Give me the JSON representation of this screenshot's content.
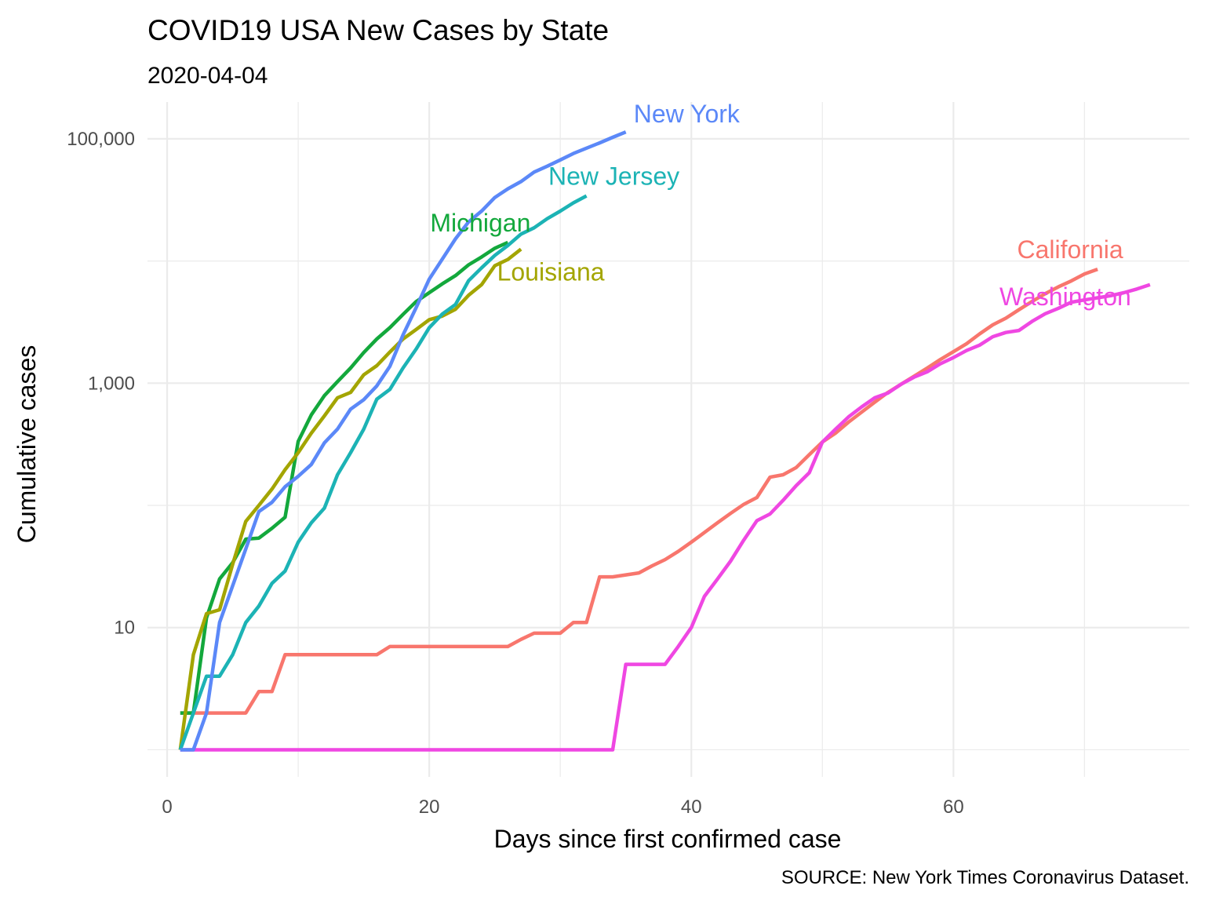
{
  "chart_data": {
    "type": "line",
    "title": "COVID19 USA New Cases by State",
    "subtitle": "2020-04-04",
    "xlabel": "Days since first confirmed case",
    "ylabel": "Cumulative cases",
    "caption": "SOURCE: New York Times Coronavirus Dataset.",
    "y_scale": "log10",
    "xlim": [
      -1.5,
      78
    ],
    "ylim": [
      0.6,
      200000
    ],
    "x_ticks": [
      0,
      20,
      40,
      60
    ],
    "x_tick_labels": [
      "0",
      "20",
      "40",
      "60"
    ],
    "y_ticks": [
      10,
      1000,
      100000
    ],
    "y_tick_labels": [
      "10",
      "1,000",
      "100,000"
    ],
    "grid": true,
    "legend": "none (series labelled directly on the plot)",
    "series": [
      {
        "name": "California",
        "color": "#F8766D",
        "x": [
          1,
          2,
          3,
          4,
          5,
          6,
          7,
          8,
          9,
          10,
          11,
          12,
          13,
          14,
          15,
          16,
          17,
          18,
          19,
          20,
          21,
          22,
          23,
          24,
          25,
          26,
          27,
          28,
          29,
          30,
          31,
          32,
          33,
          34,
          35,
          36,
          37,
          38,
          39,
          40,
          41,
          42,
          43,
          44,
          45,
          46,
          47,
          48,
          49,
          50,
          51,
          52,
          53,
          54,
          55,
          56,
          57,
          58,
          59,
          60,
          61,
          62,
          63,
          64,
          65,
          66,
          67,
          68,
          69,
          70,
          71
        ],
        "y": [
          2,
          2,
          2,
          2,
          2,
          2,
          3,
          3,
          6,
          6,
          6,
          6,
          6,
          6,
          6,
          6,
          7,
          7,
          7,
          7,
          7,
          7,
          7,
          7,
          7,
          7,
          8,
          9,
          9,
          9,
          11,
          11,
          26,
          26,
          27,
          28,
          32,
          36,
          42,
          50,
          60,
          72,
          86,
          102,
          116,
          170,
          178,
          204,
          260,
          330,
          390,
          480,
          580,
          700,
          840,
          980,
          1140,
          1330,
          1560,
          1810,
          2100,
          2530,
          3000,
          3400,
          3990,
          4660,
          5400,
          6140,
          6880,
          7830,
          8560
        ]
      },
      {
        "name": "Washington",
        "color": "#EF47E2",
        "x": [
          1,
          34,
          35,
          36,
          37,
          38,
          39,
          40,
          41,
          42,
          43,
          44,
          45,
          46,
          47,
          48,
          49,
          50,
          51,
          52,
          53,
          54,
          55,
          56,
          57,
          58,
          59,
          60,
          61,
          62,
          63,
          64,
          65,
          66,
          67,
          68,
          69,
          70,
          71,
          72,
          73,
          74,
          75
        ],
        "y": [
          1,
          1,
          5,
          5,
          5,
          5,
          7,
          10,
          18,
          25,
          35,
          52,
          75,
          85,
          110,
          145,
          185,
          330,
          420,
          530,
          640,
          760,
          830,
          980,
          1120,
          1240,
          1440,
          1620,
          1850,
          2050,
          2400,
          2600,
          2700,
          3200,
          3700,
          4100,
          4600,
          4800,
          5000,
          5200,
          5500,
          5900,
          6400
        ]
      },
      {
        "name": "Michigan",
        "color": "#13A83C",
        "x": [
          1,
          2,
          3,
          4,
          5,
          6,
          7,
          8,
          9,
          10,
          11,
          12,
          13,
          14,
          15,
          16,
          17,
          18,
          19,
          20,
          21,
          22,
          23,
          24,
          25,
          26
        ],
        "y": [
          2,
          2,
          12,
          25,
          34,
          53,
          54,
          65,
          80,
          334,
          550,
          790,
          1030,
          1330,
          1780,
          2300,
          2850,
          3650,
          4650,
          5500,
          6500,
          7600,
          9300,
          10800,
          12700,
          14200
        ]
      },
      {
        "name": "Louisiana",
        "color": "#A3A500",
        "x": [
          1,
          2,
          3,
          4,
          5,
          6,
          7,
          8,
          9,
          10,
          11,
          12,
          13,
          14,
          15,
          16,
          17,
          18,
          19,
          20,
          21,
          22,
          23,
          24,
          25,
          26,
          27
        ],
        "y": [
          1,
          6,
          13,
          14,
          33,
          74,
          100,
          136,
          196,
          270,
          390,
          540,
          760,
          840,
          1170,
          1390,
          1800,
          2300,
          2750,
          3310,
          3540,
          4030,
          5240,
          6420,
          9150,
          10300,
          12500
        ]
      },
      {
        "name": "New Jersey",
        "color": "#1CB3B5",
        "x": [
          1,
          2,
          3,
          4,
          5,
          6,
          7,
          8,
          9,
          10,
          11,
          12,
          13,
          14,
          15,
          16,
          17,
          18,
          19,
          20,
          21,
          22,
          23,
          24,
          25,
          26,
          27,
          28,
          29,
          30,
          31,
          32
        ],
        "y": [
          1,
          2,
          4,
          4,
          6,
          11,
          15,
          23,
          29,
          50,
          72,
          95,
          178,
          270,
          420,
          740,
          890,
          1330,
          1900,
          2840,
          3680,
          4400,
          6900,
          8800,
          11100,
          13400,
          16600,
          18700,
          22200,
          25600,
          29900,
          34100
        ]
      },
      {
        "name": "New York",
        "color": "#5B88F8",
        "x": [
          1,
          2,
          3,
          4,
          5,
          6,
          7,
          8,
          9,
          10,
          11,
          12,
          13,
          14,
          15,
          16,
          17,
          18,
          19,
          20,
          21,
          22,
          23,
          24,
          25,
          26,
          27,
          28,
          29,
          30,
          31,
          32,
          33,
          34,
          35
        ],
        "y": [
          1,
          1,
          2,
          11,
          22,
          44,
          89,
          106,
          142,
          173,
          216,
          325,
          421,
          613,
          732,
          950,
          1374,
          2480,
          4150,
          7100,
          10356,
          15168,
          20875,
          25665,
          33066,
          38987,
          44635,
          53363,
          59648,
          67173,
          75832,
          83889,
          92506,
          102863,
          113704
        ]
      }
    ],
    "series_labels": [
      {
        "text": "New York",
        "series": "New York"
      },
      {
        "text": "New Jersey",
        "series": "New Jersey"
      },
      {
        "text": "Michigan",
        "series": "Michigan"
      },
      {
        "text": "Louisiana",
        "series": "Louisiana"
      },
      {
        "text": "California",
        "series": "California"
      },
      {
        "text": "Washington",
        "series": "Washington"
      }
    ]
  }
}
